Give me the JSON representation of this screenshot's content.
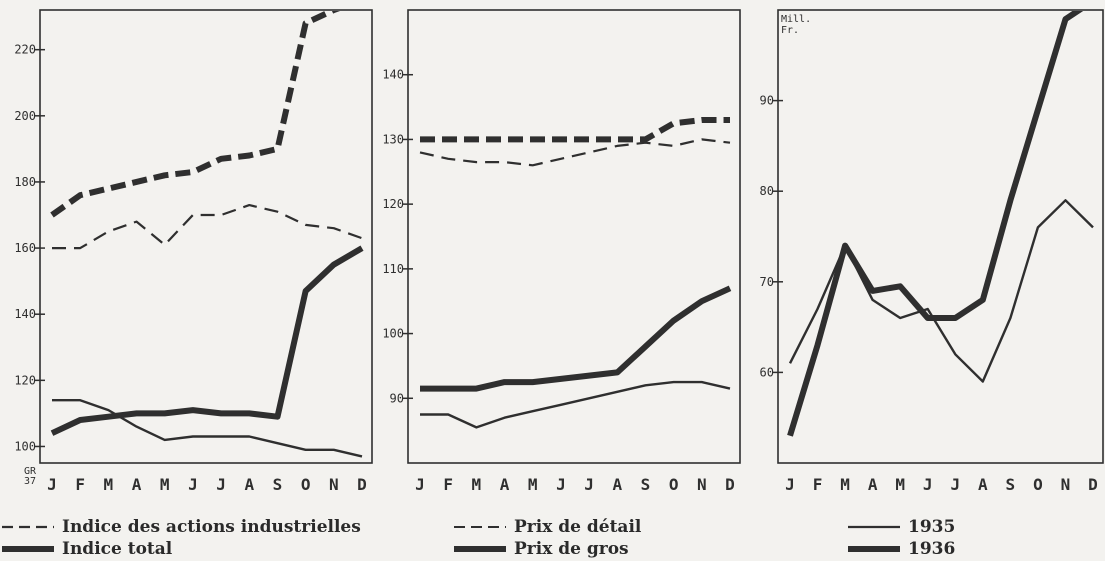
{
  "colors": {
    "ink": "#2f2f2f",
    "ink_light": "#4a4a4a",
    "paper": "#f3f2ef",
    "grid": "#d8d6d0"
  },
  "chart_data": [
    {
      "type": "line",
      "x": [
        "J",
        "F",
        "M",
        "A",
        "M",
        "J",
        "J",
        "A",
        "S",
        "O",
        "N",
        "D"
      ],
      "ylim": [
        95,
        232
      ],
      "yticks": [
        "100",
        "120",
        "140",
        "160",
        "180",
        "200",
        "220"
      ],
      "corner_label": "GR 37",
      "series": [
        {
          "name": "Indice des actions industrielles",
          "style": "dashed-thick",
          "values": [
            170,
            176,
            178,
            180,
            182,
            183,
            187,
            188,
            190,
            228,
            232,
            235
          ]
        },
        {
          "name": "",
          "style": "dashed-thin",
          "values": [
            160,
            160,
            165,
            168,
            161,
            170,
            170,
            173,
            171,
            167,
            166,
            163
          ]
        },
        {
          "name": "Indice total",
          "style": "solid-thick",
          "values": [
            104,
            108,
            109,
            110,
            110,
            111,
            110,
            110,
            109,
            147,
            155,
            160
          ]
        },
        {
          "name": "",
          "style": "solid-thin",
          "values": [
            114,
            114,
            111,
            106,
            102,
            103,
            103,
            103,
            101,
            99,
            99,
            97
          ]
        }
      ]
    },
    {
      "type": "line",
      "x": [
        "J",
        "F",
        "M",
        "A",
        "M",
        "J",
        "J",
        "A",
        "S",
        "O",
        "N",
        "D"
      ],
      "ylim": [
        80,
        150
      ],
      "yticks": [
        "90",
        "100",
        "110",
        "120",
        "130",
        "140"
      ],
      "series": [
        {
          "name": "Prix de détail",
          "style": "dashed-thin",
          "values": [
            128,
            127,
            126.5,
            126.5,
            126,
            127,
            128,
            129,
            129.5,
            129,
            130,
            129.5
          ]
        },
        {
          "name": "",
          "style": "dashed-thick",
          "values": [
            130,
            130,
            130,
            130,
            130,
            130,
            130,
            130,
            130,
            132.5,
            133,
            133
          ]
        },
        {
          "name": "Prix de gros",
          "style": "solid-thick",
          "values": [
            91.5,
            91.5,
            91.5,
            92.5,
            92.5,
            93,
            93.5,
            94,
            98,
            102,
            105,
            107
          ]
        },
        {
          "name": "",
          "style": "solid-thin",
          "values": [
            87.5,
            87.5,
            85.5,
            87,
            88,
            89,
            90,
            91,
            92,
            92.5,
            92.5,
            91.5
          ]
        }
      ]
    },
    {
      "type": "line",
      "x": [
        "J",
        "F",
        "M",
        "A",
        "M",
        "J",
        "J",
        "A",
        "S",
        "O",
        "N",
        "D"
      ],
      "ylim": [
        50,
        100
      ],
      "yticks": [
        "60",
        "70",
        "80",
        "90"
      ],
      "corner_label": "Mill. Fr.",
      "series": [
        {
          "name": "1935",
          "style": "solid-thin",
          "values": [
            61,
            67,
            74,
            68,
            66,
            67,
            62,
            59,
            66,
            76,
            79,
            76
          ]
        },
        {
          "name": "1936",
          "style": "solid-thick",
          "values": [
            53,
            63,
            74,
            69,
            69.5,
            66,
            66,
            68,
            79,
            89,
            99,
            101
          ]
        }
      ]
    }
  ],
  "legend": [
    {
      "label": "Indice des actions industrielles",
      "style": "dashed-thick"
    },
    {
      "label": "Indice total",
      "style": "solid-thick"
    },
    {
      "label": "Prix de détail",
      "style": "dashed-thin"
    },
    {
      "label": "Prix de gros",
      "style": "solid-thick"
    },
    {
      "label": "1935",
      "style": "solid-thin"
    },
    {
      "label": "1936",
      "style": "solid-thick"
    }
  ]
}
